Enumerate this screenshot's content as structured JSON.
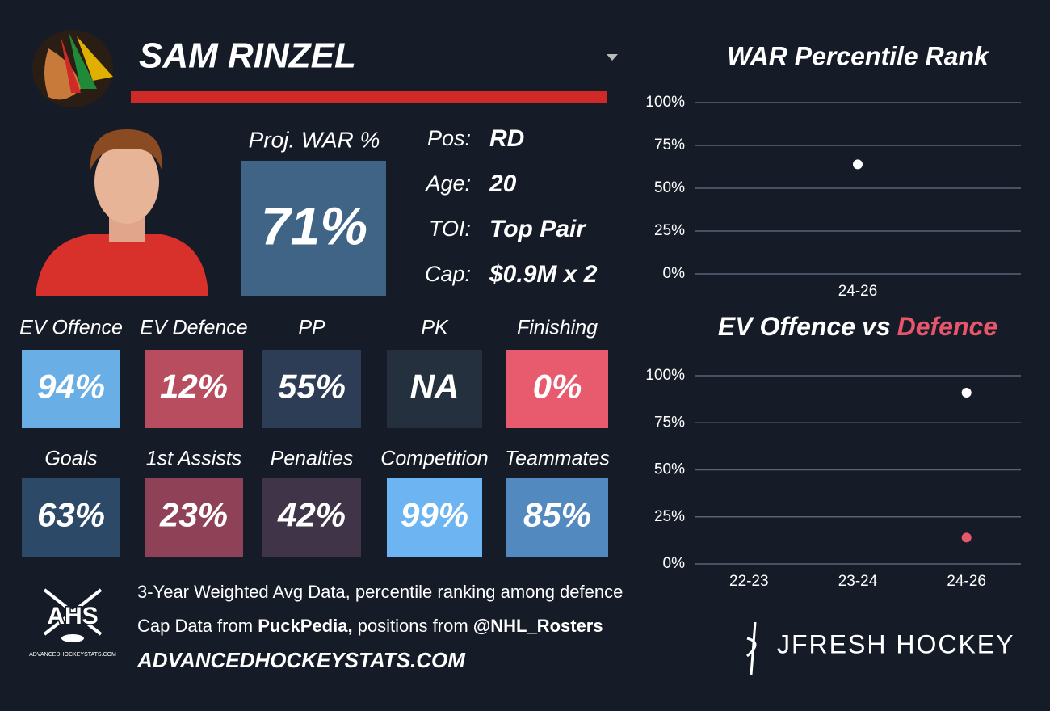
{
  "header": {
    "player": "SAM RINZEL"
  },
  "summary": {
    "label": "Proj. WAR %",
    "value": "71%",
    "color": "#3f6486"
  },
  "info": [
    {
      "label": "Pos:",
      "value": "RD"
    },
    {
      "label": "Age:",
      "value": "20"
    },
    {
      "label": "TOI:",
      "value": "Top Pair"
    },
    {
      "label": "Cap:",
      "value": "$0.9M x 2"
    }
  ],
  "tiles": [
    {
      "label": "EV Offence",
      "value": "94%",
      "color": "#6aaee6"
    },
    {
      "label": "EV Defence",
      "value": "12%",
      "color": "#b84d60"
    },
    {
      "label": "PP",
      "value": "55%",
      "color": "#2c3d55"
    },
    {
      "label": "PK",
      "value": "NA",
      "color": "#25303f"
    },
    {
      "label": "Finishing",
      "value": "0%",
      "color": "#e85a6d"
    },
    {
      "label": "Goals",
      "value": "63%",
      "color": "#2c4a68"
    },
    {
      "label": "1st Assists",
      "value": "23%",
      "color": "#8e4157"
    },
    {
      "label": "Penalties",
      "value": "42%",
      "color": "#403448"
    },
    {
      "label": "Competition",
      "value": "99%",
      "color": "#6cb4f2"
    },
    {
      "label": "Teammates",
      "value": "85%",
      "color": "#5289be"
    }
  ],
  "footer": {
    "logo": "AHS",
    "logo_caption": "ADVANCEDHOCKEYSTATS.COM",
    "note": "3-Year Weighted Avg Data, percentile ranking among defence",
    "credits": [
      "Cap Data from",
      "PuckPedia,",
      "positions from",
      "@NHL_Rosters"
    ],
    "site": "ADVANCEDHOCKEYSTATS.COM",
    "brand": "JFRESH HOCKEY"
  },
  "chart_data": [
    {
      "type": "scatter",
      "title": "WAR Percentile Rank",
      "categories": [
        "24-26"
      ],
      "values": [
        64
      ],
      "color": "#ffffff",
      "ylim": [
        0,
        100
      ],
      "yticks": [
        {
          "value": 0,
          "label": "0%"
        },
        {
          "value": 25,
          "label": "25%"
        },
        {
          "value": 50,
          "label": "50%"
        },
        {
          "value": 75,
          "label": "75%"
        },
        {
          "value": 100,
          "label": "100%"
        }
      ],
      "grid": true
    },
    {
      "type": "scatter",
      "title_joiner": "vs",
      "categories": [
        "22-23",
        "23-24",
        "24-26"
      ],
      "series": [
        {
          "name": "EV Offence",
          "color": "#ffffff",
          "values": [
            null,
            null,
            91
          ]
        },
        {
          "name": "Defence",
          "color": "#e8566c",
          "values": [
            null,
            null,
            14
          ]
        }
      ],
      "ylim": [
        0,
        100
      ],
      "yticks": [
        {
          "value": 0,
          "label": "0%"
        },
        {
          "value": 25,
          "label": "25%"
        },
        {
          "value": 50,
          "label": "50%"
        },
        {
          "value": 75,
          "label": "75%"
        },
        {
          "value": 100,
          "label": "100%"
        }
      ],
      "grid": true
    }
  ]
}
